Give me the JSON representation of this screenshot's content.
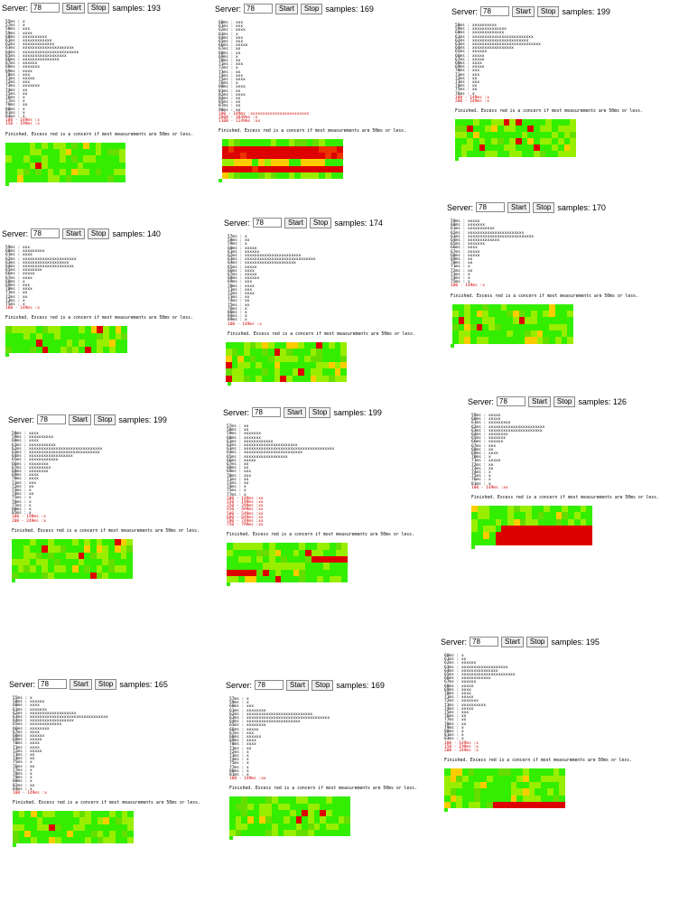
{
  "labels": {
    "server": "Server:",
    "start": "Start",
    "stop": "Stop",
    "samples_prefix": "samples:",
    "finished": "Finished. Excess red is a concern if most measurements are 50ms or less."
  },
  "colors": {
    "good": "#33ee00",
    "mid": "#99ee00",
    "warn": "#ffcc00",
    "bad": "#dd0000"
  },
  "panels": [
    {
      "server": "78",
      "samples": "193",
      "rows": [
        "55ms : x",
        "57ms : x",
        "58ms : xxx",
        "59ms : xxxx",
        "60ms : xxxxxxxxxx",
        "61ms : xxxxxxxxxxxx",
        "62ms : xxxxxxxxxxxxx",
        "63ms : xxxxxxxxxxxxxxxxxxxxx",
        "64ms : xxxxxxxxxxxxxxxxxxxxxxx",
        "65ms : xxxxxxxxxxxxxxxxxx",
        "66ms : xxxxxxxxxxxxxxx",
        "67ms : xxxxxx",
        "68ms : xxxxxxx",
        "69ms : xxxx",
        "70ms : xxx",
        "71ms : xxxxx",
        "72ms : xxx",
        "73ms : xxxxxxx",
        "74ms : xx",
        "75ms : xx",
        "76ms : x",
        "77ms : x",
        "78ms : xx",
        "80ms : x",
        "81ms : x",
        "84ms : x"
      ],
      "red": [
        "100 - 149ms :x",
        "150 - 199ms :x"
      ]
    },
    {
      "server": "78",
      "samples": "169",
      "rows": [
        "60ms : xxx",
        "61ms : xxx",
        "62ms : xxxx",
        "63ms : x",
        "64ms : xxx",
        "65ms : xxx",
        "66ms : xxxxx",
        "67ms : xx",
        "68ms : xx",
        "69ms : x",
        "70ms : xx",
        "71ms : xxx",
        "72ms : x",
        "73ms : xx",
        "74ms : xxx",
        "75ms : xxxx",
        "76ms : x",
        "80ms : xxxx",
        "81ms : xx",
        "82ms : xxxx",
        "84ms : xx",
        "85ms : xx",
        "87ms : xx",
        "90ms : xx"
      ],
      "red": [
        "100 - 149ms :xxxxxxxxxxxxxxxxxxxxxxxx",
        "1000 - 1049ms :x",
        "1100 - 1149ms :xx"
      ]
    },
    {
      "server": "78",
      "samples": "199",
      "rows": [
        "58ms : xxxxxxxxxx",
        "59ms : xxxxxxxxxxxxxx",
        "60ms : xxxxxxxxxxxxx",
        "61ms : xxxxxxxxxxxxxxxxxxxxxxxxx",
        "62ms : xxxxxxxxxxxxxxxxxxxxxxx",
        "63ms : xxxxxxxxxxxxxxxxxxxxxxxxxxxx",
        "64ms : xxxxxxxxxxxxxxxxx",
        "65ms : xxxxxx",
        "66ms : xxxxx",
        "67ms : xxxxx",
        "68ms : xxxx",
        "69ms : xxxxx",
        "70ms : xxx",
        "71ms : xxx",
        "72ms : xx",
        "73ms : xxx",
        "74ms : xx",
        "75ms : xx",
        "76ms : x"
      ],
      "red": [
        "100 - 149ms :x",
        "200 - 249ms :x"
      ]
    },
    {
      "server": "78",
      "samples": "140",
      "rows": [
        "59ms : xxx",
        "60ms : xxxxxxxxx",
        "61ms : xxxx",
        "62ms : xxxxxxxxxxxxxxxxxxxxxx",
        "63ms : xxxxxxxxxxxxxxxxxxx",
        "64ms : xxxxxxxxxxxxxxxxxxxxx",
        "65ms : xxxxxxxx",
        "66ms : xxxxx",
        "67ms : xxxx",
        "68ms : x",
        "69ms : xxx",
        "70ms : xxxx",
        "71ms : xx",
        "72ms : xx",
        "73ms : x",
        "75ms : x"
      ],
      "red": [
        "100 - 149ms :x"
      ]
    },
    {
      "server": "78",
      "samples": "174",
      "rows": [
        "57ms : x",
        "58ms : xx",
        "59ms : x",
        "60ms : xxxxx",
        "61ms : xxxxxx",
        "62ms : xxxxxxxxxxxxxxxxxxxxxxx",
        "63ms : xxxxxxxxxxxxxxxxxxxxxxxxxxxxx",
        "64ms : xxxxxxxxxxxxxxxxxxxxx",
        "65ms : xxxxx",
        "66ms : xxxx",
        "67ms : xxxxx",
        "68ms : xxxxxx",
        "69ms : xxx",
        "70ms : xxxx",
        "71ms : xxx",
        "72ms : xxxx",
        "73ms : xx",
        "74ms : xx",
        "75ms : xx",
        "76ms : x",
        "80ms : x",
        "84ms : x",
        "89ms : x"
      ],
      "red": [
        "100 - 149ms :x"
      ]
    },
    {
      "server": "78",
      "samples": "170",
      "rows": [
        "59ms : xxxxx",
        "60ms : xxxxxxx",
        "61ms : xxxxxxxxxxx",
        "62ms : xxxxxxxxxxxxxxxxxxxxxxx",
        "63ms : xxxxxxxxxxxxxxxxxxxxxxxxxxx",
        "64ms : xxxxxxxxxxxxx",
        "65ms : xxxxxxx",
        "66ms : xxxx",
        "67ms : xxxxx",
        "68ms : xxxxx",
        "69ms : xx",
        "70ms : xx",
        "71ms : x",
        "72ms : xx",
        "73ms : x",
        "74ms : x",
        "75ms : x"
      ],
      "red": [
        "100 - 149ms :x"
      ]
    },
    {
      "server": "78",
      "samples": "199",
      "rows": [
        "58ms : xxxx",
        "59ms : xxxxxxxxxx",
        "60ms : xxxx",
        "61ms : xxxxxxxxxxx",
        "62ms : xxxxxxxxxxxxxxxxxxxxxxxxxxxxxx",
        "63ms : xxxxxxxxxxxxxxxxxxxxxxxxxxxxx",
        "64ms : xxxxxxxxxxxxxxxxxx",
        "65ms : xxxxxxxxxxxx",
        "66ms : xxxxxxxx",
        "67ms : xxxxxxxxx",
        "68ms : xxxxxxxx",
        "69ms : xxxx",
        "70ms : xxxx",
        "71ms : xxx",
        "72ms : xx",
        "73ms : x",
        "74ms : xx",
        "75ms : x",
        "76ms : x",
        "77ms : x",
        "80ms : x",
        "85ms : x"
      ],
      "red": [
        "100 - 199ms :x",
        "200 - 249ms :x"
      ]
    },
    {
      "server": "78",
      "samples": "199",
      "rows": [
        "57ms : xx",
        "58ms : xx",
        "59ms : xxxxxxx",
        "60ms : xxxxxxx",
        "61ms : xxxxxxxxxxxx",
        "62ms : xxxxxxxxxxxxxxxxxxxxxx",
        "63ms : xxxxxxxxxxxxxxxxxxxxxxxxxxxxxxxxxxxxx",
        "64ms : xxxxxxxxxxxxxxxxxxxxxxxx",
        "65ms : xxxxxxxxxxxxxxxxxx",
        "66ms : xxxxx",
        "67ms : xx",
        "68ms : xx",
        "69ms : xxx",
        "70ms : xxx",
        "71ms : xx",
        "72ms : xx",
        "74ms : x",
        "75ms : x",
        "77ms : x"
      ],
      "red": [
        "100 - 149ms :xx",
        "150 - 199ms :xx",
        "250 - 299ms :xx",
        "450 - 499ms :xx",
        "500 - 549ms :xx",
        "600 - 649ms :xx",
        "700 - 749ms :xx",
        "750 - 799ms :xx"
      ]
    },
    {
      "server": "78",
      "samples": "126",
      "rows": [
        "59ms : xxxxx",
        "60ms : xxxxx",
        "61ms : xxxxxxxxx",
        "62ms : xxxxxxxxxxxxxxxxxxxxxxx",
        "63ms : xxxxxxxxxxxxxxxxxxxxxx",
        "64ms : xxxxxxxx",
        "65ms : xxxxxxx",
        "66ms : xxxxxx",
        "67ms : xxx",
        "68ms : xx",
        "69ms : xxxx",
        "70ms : x",
        "71ms : xxxxx",
        "72ms : xx",
        "73ms : xx",
        "74ms : x",
        "75ms : x",
        "76ms : x",
        "81ms : x"
      ],
      "red": [
        "100 - 149ms :xx"
      ]
    },
    {
      "server": "78",
      "samples": "195",
      "rows": [
        "60ms : x",
        "61ms : xx",
        "62ms : xxxxxx",
        "63ms : xxxxxxxxxxxxxxxxxxx",
        "64ms : xxxxxxxxxxxxxxx",
        "65ms : xxxxxxxxxxxxxxxxxxxxxx",
        "66ms : xxxxxxxxxxxx",
        "67ms : xxxxxx",
        "68ms : xxxxx",
        "69ms : xxxx",
        "70ms : xxxx",
        "71ms : xxxxx",
        "72ms : xxxxxxx",
        "73ms : xxxxxxxxxx",
        "74ms : xxxxx",
        "75ms : xxx",
        "76ms : xx",
        "77ms : xx",
        "78ms : xx",
        "79ms : x",
        "80ms : x",
        "81ms : x",
        "83ms : x"
      ],
      "red": [
        "100 - 149ms :x",
        "150 - 199ms :x",
        "200 - 249ms :x"
      ]
    },
    {
      "server": "78",
      "samples": "165",
      "rows": [
        "55ms : x",
        "58ms : xxxxxx",
        "60ms : xxxx",
        "61ms : xxxxxxx",
        "62ms : xxxxxxxxxxxxxxxxxxx",
        "63ms : xxxxxxxxxxxxxxxxxxxxxxxxxxxxxxxx",
        "64ms : xxxxxxxxxxxxxxxxxx",
        "65ms : xxxxxxxxxxxxx",
        "66ms : xxxxxxxx",
        "67ms : xxxx",
        "68ms : xxxxxx",
        "69ms : xxxxx",
        "70ms : xxxx",
        "71ms : xxxx",
        "72ms : xxxxx",
        "73ms : xx",
        "74ms : xx",
        "75ms : x",
        "76ms : xx",
        "77ms : x",
        "78ms : x",
        "79ms : x",
        "80ms : x",
        "82ms : xx",
        "84ms : x"
      ],
      "red": [
        "100 - 149ms :x"
      ]
    },
    {
      "server": "78",
      "samples": "169",
      "rows": [
        "57ms : x",
        "59ms : x",
        "60ms : xxx",
        "61ms : xxxxxxxx",
        "62ms : xxxxxxxxxxxxxxxxxxxxxxxxxxx",
        "63ms : xxxxxxxxxxxxxxxxxxxxxxxxxxxxxxxxxx",
        "64ms : xxxxxxxxxxxxxxxxxxxxxx",
        "65ms : xxxxxxxx",
        "66ms : xxxxx",
        "67ms : xxx",
        "68ms : xxxxxx",
        "69ms : xxxx",
        "70ms : xxxx",
        "71ms : xx",
        "72ms : x",
        "73ms : x",
        "74ms : x",
        "75ms : x",
        "77ms : x",
        "80ms : x",
        "81ms : x"
      ],
      "red": [
        "100 - 149ms :xx"
      ]
    }
  ]
}
